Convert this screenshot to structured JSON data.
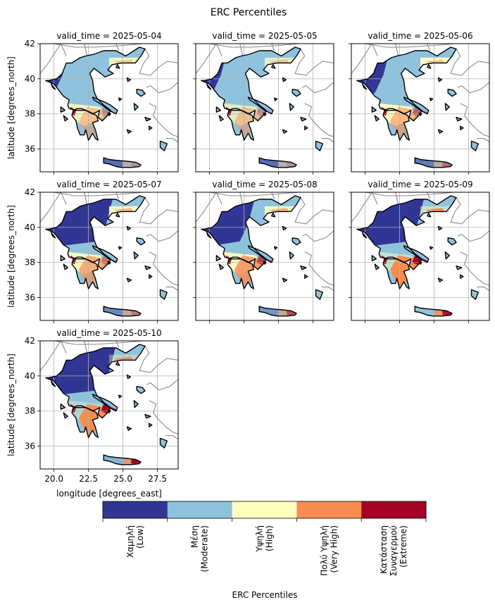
{
  "chart_data": {
    "type": "heatmap",
    "title": "ERC Percentiles",
    "xlabel": "longitude [degrees_east]",
    "ylabel": "latitude [degrees_north]",
    "xlim": [
      19.0,
      29.0
    ],
    "ylim": [
      34.7,
      42.0
    ],
    "xticks": [
      20.0,
      22.5,
      25.0,
      27.5
    ],
    "xtick_labels": [
      "20.0",
      "22.5",
      "25.0",
      "27.5"
    ],
    "yticks": [
      36,
      38,
      40,
      42
    ],
    "ytick_labels": [
      "36",
      "38",
      "40",
      "42"
    ],
    "grid": true,
    "panel_title_prefix": "valid_time = ",
    "panels": [
      {
        "valid_time": "2025-05-04",
        "dominant": "Moderate",
        "low_frac": 0.08,
        "high_frac": 0.14,
        "veryhigh_frac": 0.08,
        "extreme_frac": 0.02
      },
      {
        "valid_time": "2025-05-05",
        "dominant": "Moderate",
        "low_frac": 0.1,
        "high_frac": 0.12,
        "veryhigh_frac": 0.08,
        "extreme_frac": 0.02
      },
      {
        "valid_time": "2025-05-06",
        "dominant": "Moderate",
        "low_frac": 0.15,
        "high_frac": 0.16,
        "veryhigh_frac": 0.1,
        "extreme_frac": 0.04
      },
      {
        "valid_time": "2025-05-07",
        "dominant": "Low",
        "low_frac": 0.4,
        "high_frac": 0.15,
        "veryhigh_frac": 0.12,
        "extreme_frac": 0.03
      },
      {
        "valid_time": "2025-05-08",
        "dominant": "Moderate",
        "low_frac": 0.3,
        "high_frac": 0.15,
        "veryhigh_frac": 0.14,
        "extreme_frac": 0.06
      },
      {
        "valid_time": "2025-05-09",
        "dominant": "Low",
        "low_frac": 0.4,
        "high_frac": 0.08,
        "veryhigh_frac": 0.2,
        "extreme_frac": 0.1
      },
      {
        "valid_time": "2025-05-10",
        "dominant": "Low",
        "low_frac": 0.42,
        "high_frac": 0.06,
        "veryhigh_frac": 0.18,
        "extreme_frac": 0.12
      }
    ],
    "colorbar": {
      "label": "ERC Percentiles",
      "categories": [
        {
          "lines": [
            "Χαμηλή",
            "(Low)"
          ],
          "color": "#313695"
        },
        {
          "lines": [
            "Μέση",
            "(Moderate)"
          ],
          "color": "#8fc3dd"
        },
        {
          "lines": [
            "Υψηλή",
            "(High)"
          ],
          "color": "#ffffbf"
        },
        {
          "lines": [
            "Πολύ Υψηλή",
            "(Very High)"
          ],
          "color": "#f88d52"
        },
        {
          "lines": [
            "Κατάσταση",
            "Συναγερμού",
            "(Extreme)"
          ],
          "color": "#a50026"
        }
      ]
    }
  }
}
